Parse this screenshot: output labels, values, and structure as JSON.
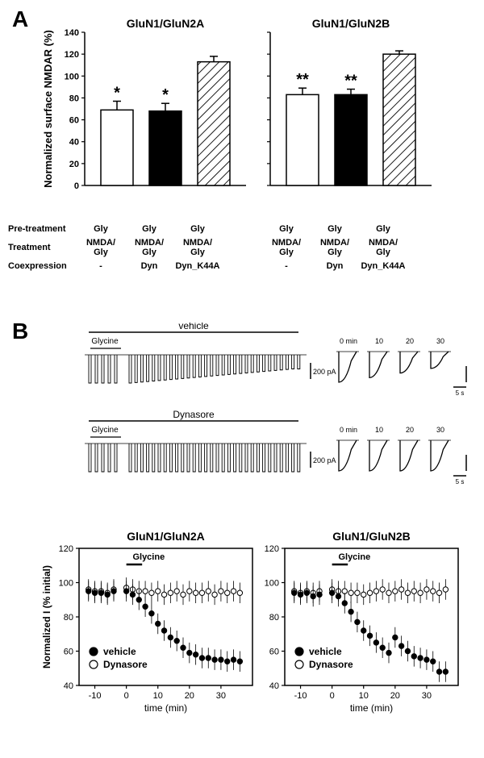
{
  "panelA": {
    "label": "A",
    "y_axis_label": "Normalized surface NMDAR  (%)",
    "ylim": [
      0,
      140
    ],
    "yticks": [
      0,
      20,
      40,
      60,
      80,
      100,
      120,
      140
    ],
    "tick_fontsize": 11,
    "axis_label_fontsize": 13,
    "title_fontsize": 14,
    "charts": [
      {
        "title": "GluN1/GluN2A",
        "bars": [
          {
            "value": 69,
            "err": 8,
            "fill": "#ffffff",
            "pattern": "none",
            "sig": "*"
          },
          {
            "value": 68,
            "err": 7,
            "fill": "#000000",
            "pattern": "none",
            "sig": "*"
          },
          {
            "value": 113,
            "err": 5,
            "fill": "#ffffff",
            "pattern": "hatch",
            "sig": ""
          }
        ]
      },
      {
        "title": "GluN1/GluN2B",
        "bars": [
          {
            "value": 83,
            "err": 6,
            "fill": "#ffffff",
            "pattern": "none",
            "sig": "**"
          },
          {
            "value": 83,
            "err": 5,
            "fill": "#000000",
            "pattern": "none",
            "sig": "**"
          },
          {
            "value": 120,
            "err": 3,
            "fill": "#ffffff",
            "pattern": "hatch",
            "sig": ""
          }
        ]
      }
    ],
    "conditions": {
      "rows": [
        {
          "label": "Pre-treatment",
          "cells": [
            "Gly",
            "Gly",
            "Gly",
            "Gly",
            "Gly",
            "Gly"
          ]
        },
        {
          "label": "Treatment",
          "cells": [
            "NMDA/\nGly",
            "NMDA/\nGly",
            "NMDA/\nGly",
            "NMDA/\nGly",
            "NMDA/\nGly",
            "NMDA/\nGly"
          ]
        },
        {
          "label": "Coexpression",
          "cells": [
            "-",
            "Dyn",
            "Dyn_K44A",
            "-",
            "Dyn",
            "Dyn_K44A"
          ]
        }
      ]
    },
    "sig_fontsize": 20
  },
  "panelB": {
    "label": "B",
    "traces": {
      "top_label": "vehicle",
      "bottom_label": "Dynasore",
      "gly_label": "Glycine",
      "scale_y": "200 pA",
      "scale_x": "5 s",
      "inset_times": [
        "0 min",
        "10",
        "20",
        "30"
      ]
    },
    "line_charts": [
      {
        "title": "GluN1/GluN2A",
        "gly_label": "Glycine",
        "legend": [
          {
            "label": "vehicle",
            "fill": "#000000"
          },
          {
            "label": "Dynasore",
            "fill": "#ffffff"
          }
        ]
      },
      {
        "title": "GluN1/GluN2B",
        "gly_label": "Glycine",
        "legend": [
          {
            "label": "vehicle",
            "fill": "#000000"
          },
          {
            "label": "Dynasore",
            "fill": "#ffffff"
          }
        ]
      }
    ],
    "y_axis_label": "Normalized I (% initial)",
    "x_axis_label": "time (min)",
    "ylim": [
      40,
      120
    ],
    "yticks": [
      40,
      60,
      80,
      100,
      120
    ],
    "xlim": [
      -15,
      40
    ],
    "xticks": [
      -10,
      0,
      10,
      20,
      30
    ],
    "series": {
      "vehicle_2A": {
        "x": [
          -12,
          -10,
          -8,
          -6,
          -4,
          0,
          2,
          4,
          6,
          8,
          10,
          12,
          14,
          16,
          18,
          20,
          22,
          24,
          26,
          28,
          30,
          32,
          34,
          36
        ],
        "y": [
          95,
          94,
          94,
          93,
          95,
          95,
          93,
          90,
          86,
          82,
          76,
          72,
          68,
          66,
          62,
          59,
          58,
          56,
          56,
          55,
          55,
          54,
          55,
          54
        ]
      },
      "dynasore_2A": {
        "x": [
          -12,
          -10,
          -8,
          -6,
          -4,
          0,
          2,
          4,
          6,
          8,
          10,
          12,
          14,
          16,
          18,
          20,
          22,
          24,
          26,
          28,
          30,
          32,
          34,
          36
        ],
        "y": [
          96,
          95,
          95,
          94,
          96,
          97,
          96,
          95,
          95,
          94,
          95,
          93,
          94,
          95,
          93,
          95,
          94,
          94,
          95,
          93,
          95,
          94,
          95,
          94
        ]
      },
      "vehicle_2B": {
        "x": [
          -12,
          -10,
          -8,
          -6,
          -4,
          0,
          2,
          4,
          6,
          8,
          10,
          12,
          14,
          16,
          18,
          20,
          22,
          24,
          26,
          28,
          30,
          32,
          34,
          36
        ],
        "y": [
          94,
          93,
          94,
          92,
          93,
          94,
          92,
          88,
          83,
          77,
          72,
          69,
          65,
          62,
          59,
          68,
          63,
          60,
          57,
          56,
          55,
          54,
          48,
          48
        ]
      },
      "dynasore_2B": {
        "x": [
          -12,
          -10,
          -8,
          -6,
          -4,
          0,
          2,
          4,
          6,
          8,
          10,
          12,
          14,
          16,
          18,
          20,
          22,
          24,
          26,
          28,
          30,
          32,
          34,
          36
        ],
        "y": [
          95,
          94,
          95,
          94,
          95,
          96,
          95,
          95,
          94,
          94,
          93,
          94,
          95,
          96,
          94,
          95,
          96,
          94,
          95,
          94,
          96,
          95,
          94,
          96
        ]
      }
    },
    "err": 6,
    "marker_radius": 3.2,
    "title_fontsize": 14,
    "axis_label_fontsize": 12,
    "tick_fontsize": 11
  },
  "colors": {
    "axis": "#000000",
    "bg": "#ffffff"
  }
}
